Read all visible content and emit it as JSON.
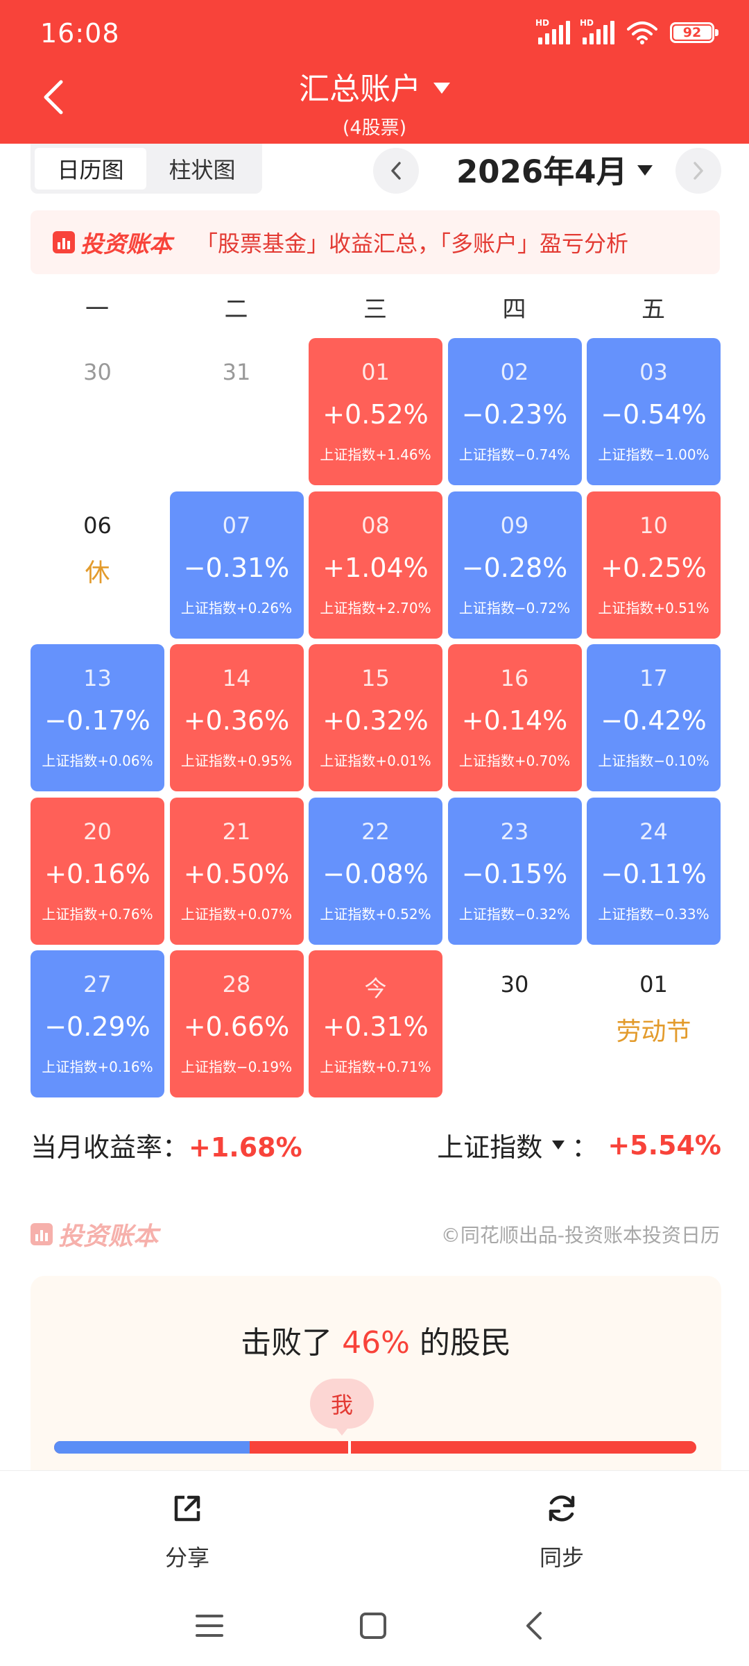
{
  "status_bar": {
    "time": "16:08",
    "battery": "92",
    "sim1": "HD",
    "sim2": "HD"
  },
  "header": {
    "title": "汇总账户",
    "subtitle": "(4股票)"
  },
  "view_toggle": {
    "calendar": "日历图",
    "bar": "柱状图",
    "active": "calendar"
  },
  "month_nav": {
    "label": "2026年4月"
  },
  "banner": {
    "brand": "投资账本",
    "text": "「股票基金」收益汇总，「多账户」盈亏分析"
  },
  "weekdays": [
    "一",
    "二",
    "三",
    "四",
    "五"
  ],
  "calendar": [
    {
      "day": "30",
      "type": "plain"
    },
    {
      "day": "31",
      "type": "plain"
    },
    {
      "day": "01",
      "pct": "+0.52%",
      "index": "上证指数+1.46%",
      "type": "red"
    },
    {
      "day": "02",
      "pct": "−0.23%",
      "index": "上证指数−0.74%",
      "type": "blue"
    },
    {
      "day": "03",
      "pct": "−0.54%",
      "index": "上证指数−1.00%",
      "type": "blue"
    },
    {
      "day": "06",
      "type": "holiday",
      "label": "休"
    },
    {
      "day": "07",
      "pct": "−0.31%",
      "index": "上证指数+0.26%",
      "type": "blue"
    },
    {
      "day": "08",
      "pct": "+1.04%",
      "index": "上证指数+2.70%",
      "type": "red"
    },
    {
      "day": "09",
      "pct": "−0.28%",
      "index": "上证指数−0.72%",
      "type": "blue"
    },
    {
      "day": "10",
      "pct": "+0.25%",
      "index": "上证指数+0.51%",
      "type": "red"
    },
    {
      "day": "13",
      "pct": "−0.17%",
      "index": "上证指数+0.06%",
      "type": "blue"
    },
    {
      "day": "14",
      "pct": "+0.36%",
      "index": "上证指数+0.95%",
      "type": "red"
    },
    {
      "day": "15",
      "pct": "+0.32%",
      "index": "上证指数+0.01%",
      "type": "red"
    },
    {
      "day": "16",
      "pct": "+0.14%",
      "index": "上证指数+0.70%",
      "type": "red"
    },
    {
      "day": "17",
      "pct": "−0.42%",
      "index": "上证指数−0.10%",
      "type": "blue"
    },
    {
      "day": "20",
      "pct": "+0.16%",
      "index": "上证指数+0.76%",
      "type": "red"
    },
    {
      "day": "21",
      "pct": "+0.50%",
      "index": "上证指数+0.07%",
      "type": "red"
    },
    {
      "day": "22",
      "pct": "−0.08%",
      "index": "上证指数+0.52%",
      "type": "blue"
    },
    {
      "day": "23",
      "pct": "−0.15%",
      "index": "上证指数−0.32%",
      "type": "blue"
    },
    {
      "day": "24",
      "pct": "−0.11%",
      "index": "上证指数−0.33%",
      "type": "blue"
    },
    {
      "day": "27",
      "pct": "−0.29%",
      "index": "上证指数+0.16%",
      "type": "blue"
    },
    {
      "day": "28",
      "pct": "+0.66%",
      "index": "上证指数−0.19%",
      "type": "red"
    },
    {
      "day": "今",
      "pct": "+0.31%",
      "index": "上证指数+0.71%",
      "type": "red"
    },
    {
      "day": "30",
      "type": "future"
    },
    {
      "day": "01",
      "type": "holiday",
      "label": "劳动节"
    }
  ],
  "summary": {
    "month_label": "当月收益率：",
    "month_value": "+1.68%",
    "index_label": "上证指数",
    "index_sep": "：",
    "index_value": "+5.54%"
  },
  "footer": {
    "brand": "投资账本",
    "copyright": "©同花顺出品-投资账本投资日历"
  },
  "beat": {
    "prefix": "击败了 ",
    "percent": "46%",
    "suffix": " 的股民",
    "me_label": "我",
    "beat_fraction": 0.46
  },
  "actions": {
    "share": "分享",
    "sync": "同步"
  },
  "colors": {
    "brand_red": "#f8433a",
    "gain_red": "#ff6058",
    "loss_blue": "#6592fc",
    "holiday": "#e39b2c"
  }
}
